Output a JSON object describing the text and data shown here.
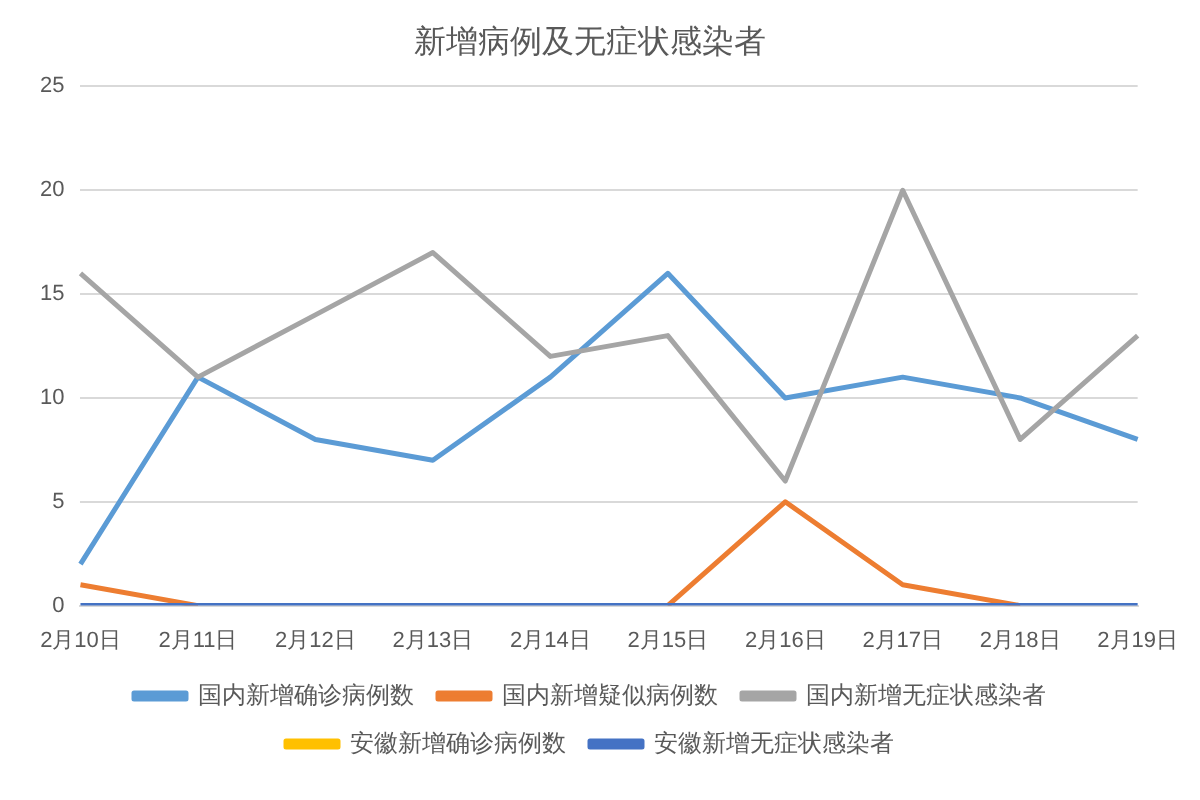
{
  "chart_data": {
    "type": "line",
    "title": "新增病例及无症状感染者",
    "categories": [
      "2月10日",
      "2月11日",
      "2月12日",
      "2月13日",
      "2月14日",
      "2月15日",
      "2月16日",
      "2月17日",
      "2月18日",
      "2月19日"
    ],
    "series": [
      {
        "name": "国内新增确诊病例数",
        "color": "#5b9bd5",
        "values": [
          2,
          11,
          8,
          7,
          11,
          16,
          10,
          11,
          10,
          8
        ]
      },
      {
        "name": "国内新增疑似病例数",
        "color": "#ed7d31",
        "values": [
          1,
          0,
          null,
          null,
          null,
          0,
          5,
          1,
          0,
          null
        ]
      },
      {
        "name": "国内新增无症状感染者",
        "color": "#a5a5a5",
        "values": [
          16,
          11,
          14,
          17,
          12,
          13,
          6,
          20,
          8,
          13
        ]
      },
      {
        "name": "安徽新增确诊病例数",
        "color": "#ffc000",
        "values": [
          null,
          null,
          null,
          null,
          null,
          null,
          null,
          null,
          null,
          null
        ]
      },
      {
        "name": "安徽新增无症状感染者",
        "color": "#4472c4",
        "values": [
          0,
          0,
          0,
          0,
          0,
          0,
          0,
          0,
          0,
          0
        ]
      }
    ],
    "ylim": [
      0,
      25
    ],
    "yticks": [
      0,
      5,
      10,
      15,
      20,
      25
    ],
    "grid": "y",
    "legend": "bottom",
    "marker": "none",
    "line_style": "solid"
  }
}
